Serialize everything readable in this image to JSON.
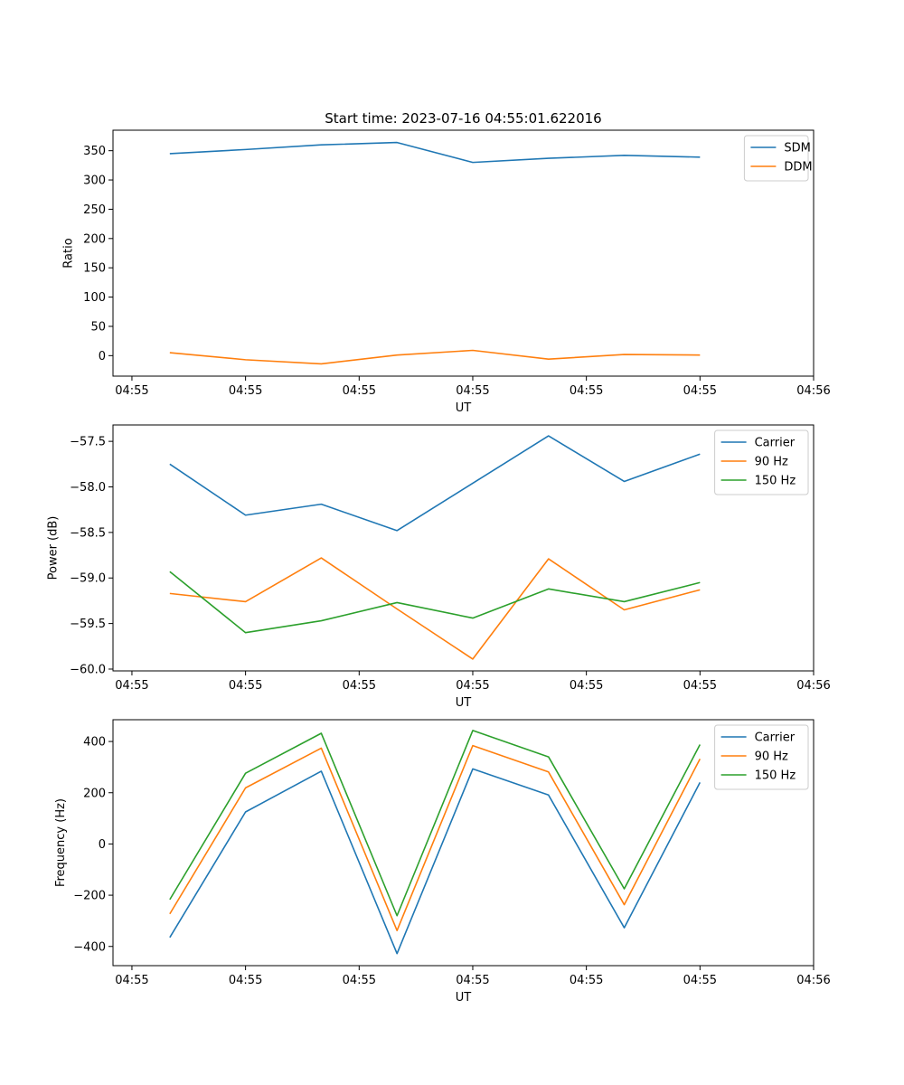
{
  "colors": {
    "blue": "#1f77b4",
    "orange": "#ff7f0e",
    "green": "#2ca02c"
  },
  "chart_data": [
    {
      "type": "line",
      "title": "Start time: 2023-07-16 04:55:01.622016",
      "xlabel": "UT",
      "ylabel": "Ratio",
      "x": [
        1,
        2,
        3,
        4,
        5,
        6,
        7,
        8
      ],
      "xlim": [
        0.25,
        9.5
      ],
      "xticks": [
        0.5,
        2,
        3.5,
        5,
        6.5,
        8,
        9.5
      ],
      "xtick_labels": [
        "04:55",
        "04:55",
        "04:55",
        "04:55",
        "04:55",
        "04:55",
        "04:56"
      ],
      "ylim": [
        -35,
        385
      ],
      "yticks": [
        0,
        50,
        100,
        150,
        200,
        250,
        300,
        350
      ],
      "ytick_labels": [
        "0",
        "50",
        "100",
        "150",
        "200",
        "250",
        "300",
        "350"
      ],
      "legend": "top-right",
      "series": [
        {
          "name": "SDM",
          "color": "blue",
          "values": [
            345,
            352,
            360,
            364,
            330,
            337,
            342,
            339
          ]
        },
        {
          "name": "DDM",
          "color": "orange",
          "values": [
            5,
            -7,
            -14,
            1,
            9,
            -6,
            2,
            1
          ]
        }
      ]
    },
    {
      "type": "line",
      "title": "",
      "xlabel": "UT",
      "ylabel": "Power (dB)",
      "x": [
        1,
        2,
        3,
        4,
        5,
        6,
        7,
        8
      ],
      "xlim": [
        0.25,
        9.5
      ],
      "xticks": [
        0.5,
        2,
        3.5,
        5,
        6.5,
        8,
        9.5
      ],
      "xtick_labels": [
        "04:55",
        "04:55",
        "04:55",
        "04:55",
        "04:55",
        "04:55",
        "04:56"
      ],
      "ylim": [
        -60.02,
        -57.32
      ],
      "yticks": [
        -60.0,
        -59.5,
        -59.0,
        -58.5,
        -58.0,
        -57.5
      ],
      "ytick_labels": [
        "−60.0",
        "−59.5",
        "−59.0",
        "−58.5",
        "−58.0",
        "−57.5"
      ],
      "legend": "top-right",
      "series": [
        {
          "name": "Carrier",
          "color": "blue",
          "values": [
            -57.75,
            -58.31,
            -58.19,
            -58.48,
            -57.96,
            -57.44,
            -57.94,
            -57.64
          ]
        },
        {
          "name": "90 Hz",
          "color": "orange",
          "values": [
            -59.17,
            -59.26,
            -58.78,
            -59.34,
            -59.89,
            -58.79,
            -59.35,
            -59.13
          ]
        },
        {
          "name": "150 Hz",
          "color": "green",
          "values": [
            -58.93,
            -59.6,
            -59.47,
            -59.27,
            -59.44,
            -59.12,
            -59.26,
            -59.05
          ]
        }
      ]
    },
    {
      "type": "line",
      "title": "",
      "xlabel": "UT",
      "ylabel": "Frequency (Hz)",
      "x": [
        1,
        2,
        3,
        4,
        5,
        6,
        7,
        8
      ],
      "xlim": [
        0.25,
        9.5
      ],
      "xticks": [
        0.5,
        2,
        3.5,
        5,
        6.5,
        8,
        9.5
      ],
      "xtick_labels": [
        "04:55",
        "04:55",
        "04:55",
        "04:55",
        "04:55",
        "04:55",
        "04:56"
      ],
      "ylim": [
        -475,
        485
      ],
      "yticks": [
        -400,
        -200,
        0,
        200,
        400
      ],
      "ytick_labels": [
        "−400",
        "−200",
        "0",
        "200",
        "400"
      ],
      "legend": "top-right",
      "series": [
        {
          "name": "Carrier",
          "color": "blue",
          "values": [
            -365,
            125,
            284,
            -428,
            293,
            191,
            -327,
            240
          ]
        },
        {
          "name": "90 Hz",
          "color": "orange",
          "values": [
            -273,
            219,
            374,
            -338,
            384,
            281,
            -237,
            332
          ]
        },
        {
          "name": "150 Hz",
          "color": "green",
          "values": [
            -217,
            276,
            432,
            -280,
            443,
            340,
            -175,
            388
          ]
        }
      ]
    }
  ]
}
